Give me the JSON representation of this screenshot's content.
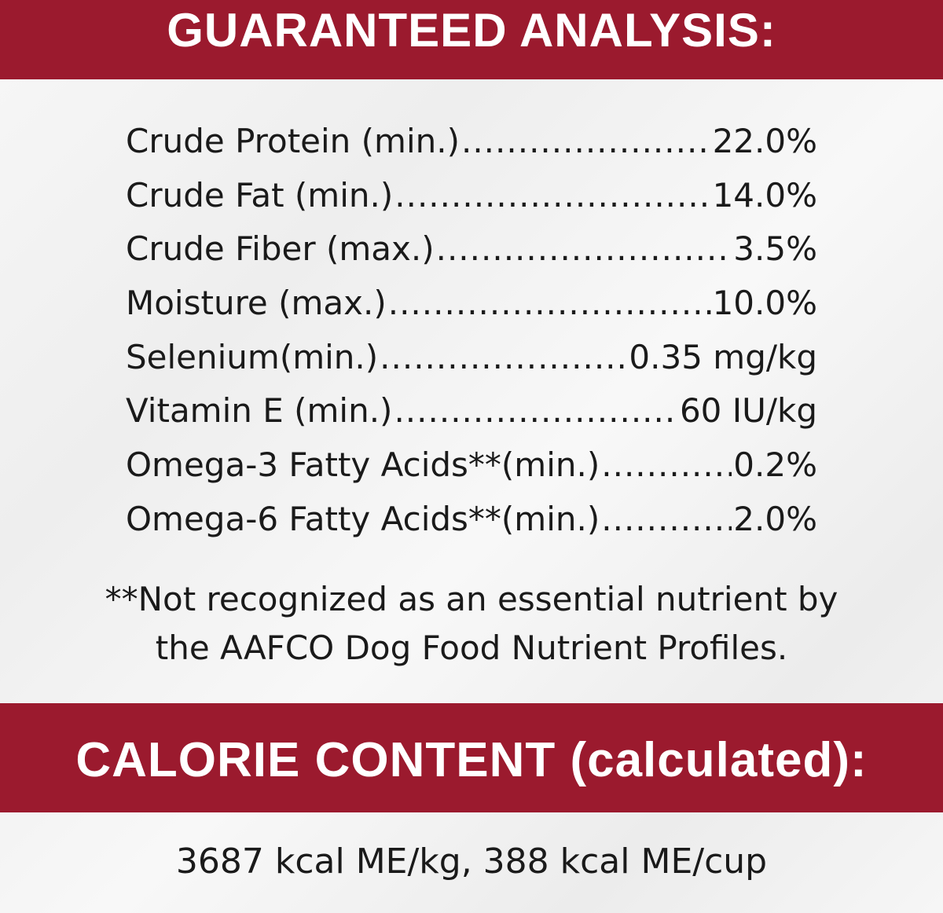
{
  "guaranteed_analysis": {
    "title": "GUARANTEED ANALYSIS:",
    "rows": [
      {
        "label": "Crude Protein (min.)",
        "value": "22.0%"
      },
      {
        "label": "Crude Fat (min.)",
        "value": "14.0%"
      },
      {
        "label": "Crude Fiber (max.)",
        "value": "3.5%"
      },
      {
        "label": "Moisture (max.)",
        "value": "10.0%"
      },
      {
        "label": "Selenium(min.)",
        "value": "0.35 mg/kg"
      },
      {
        "label": "Vitamin E (min.)",
        "value": "60 IU/kg"
      },
      {
        "label": "Omega-3 Fatty Acids**(min.)",
        "value": "0.2%"
      },
      {
        "label": "Omega-6 Fatty Acids**(min.)",
        "value": "2.0%"
      }
    ],
    "footnote_line1": "**Not recognized as an essential nutrient by",
    "footnote_line2": "the AAFCO Dog Food Nutrient Profiles."
  },
  "calorie_content": {
    "title": "CALORIE CONTENT (calculated):",
    "value": "3687 kcal ME/kg, 388 kcal ME/cup"
  },
  "colors": {
    "banner": "#9b1a2e",
    "background": "#f3f3f3",
    "text": "#1a1a1a"
  }
}
